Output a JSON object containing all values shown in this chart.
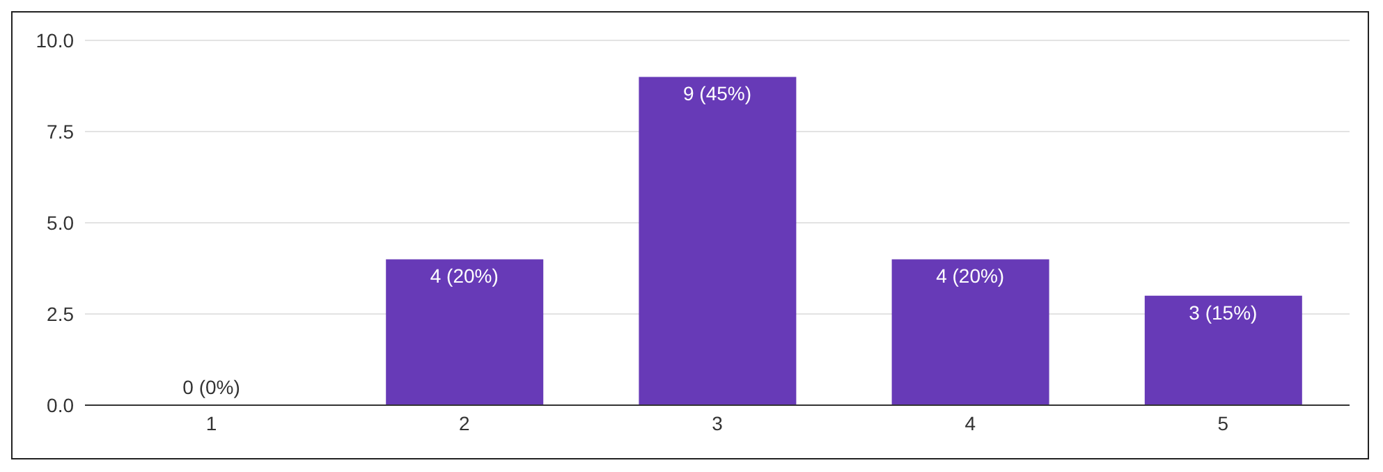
{
  "chart_data": {
    "type": "bar",
    "categories": [
      "1",
      "2",
      "3",
      "4",
      "5"
    ],
    "values": [
      0,
      4,
      9,
      4,
      3
    ],
    "value_labels": [
      "0 (0%)",
      "4 (20%)",
      "9 (45%)",
      "4 (20%)",
      "3 (15%)"
    ],
    "color": "#673ab7",
    "ylim": [
      0,
      10
    ],
    "yticks": [
      {
        "value": 0,
        "label": "0.0"
      },
      {
        "value": 2.5,
        "label": "2.5"
      },
      {
        "value": 5,
        "label": "5.0"
      },
      {
        "value": 7.5,
        "label": "7.5"
      },
      {
        "value": 10,
        "label": "10.0"
      }
    ],
    "grid": "y",
    "legend": false
  }
}
